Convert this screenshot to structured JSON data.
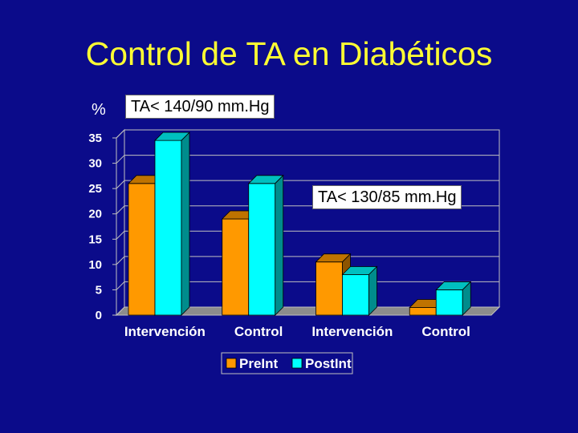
{
  "slide": {
    "title": "Control de TA en Diabéticos",
    "unit_label": "%",
    "annotation_1": "TA< 140/90 mm.Hg",
    "annotation_2": "TA< 130/85 mm.Hg"
  },
  "chart_data": {
    "type": "bar",
    "categories": [
      "Intervención",
      "Control",
      "Intervención",
      "Control"
    ],
    "series": [
      {
        "name": "PreInt",
        "values": [
          26,
          19,
          10.5,
          1.5
        ],
        "color": "#ff9900"
      },
      {
        "name": "PostInt",
        "values": [
          34.5,
          26,
          8,
          5
        ],
        "color": "#00ffff"
      }
    ],
    "ylim": [
      0,
      35
    ],
    "yticks": [
      "0",
      "5",
      "10",
      "15",
      "20",
      "25",
      "30",
      "35"
    ],
    "grid": true,
    "legend_position": "bottom"
  }
}
